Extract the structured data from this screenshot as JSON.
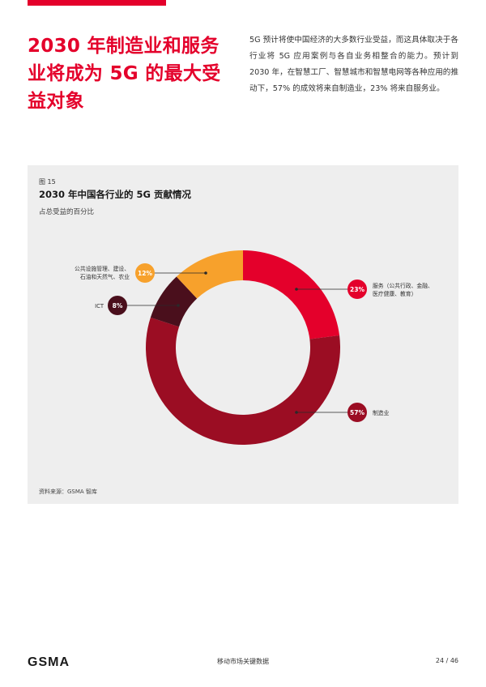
{
  "headline": "2030 年制造业和服务业将成为 5G 的最大受益对象",
  "intro": "5G 预计将使中国经济的大多数行业受益，而这具体取决于各行业将 5G 应用案例与各自业务相整合的能力。预计到 2030 年，在智慧工厂、智慧城市和智慧电网等各种应用的推动下，57% 的成效将来自制造业，23% 将来自服务业。",
  "figure": {
    "number": "图 15",
    "source": "资料来源：GSMA 智库"
  },
  "chart_data": {
    "type": "pie",
    "style": "donut",
    "title": "2030 年中国各行业的 5G 贡献情况",
    "subtitle": "占总受益的百分比",
    "slices": [
      {
        "label": "服务（公共行政、金融、医疗健康、教育）",
        "value": 23,
        "value_label": "23%",
        "color": "#e4002b",
        "label_lines": [
          "服务（公共行政、金融、",
          "医疗健康、教育）"
        ]
      },
      {
        "label": "制造业",
        "value": 57,
        "value_label": "57%",
        "color": "#9b0d23",
        "label_lines": [
          "制造业"
        ]
      },
      {
        "label": "ICT",
        "value": 8,
        "value_label": "8%",
        "color": "#4a0f1c",
        "label_lines": [
          "ICT"
        ]
      },
      {
        "label": "公共设施管理、建设、石油和天然气、农业",
        "value": 12,
        "value_label": "12%",
        "color": "#f7a12c",
        "label_lines": [
          "公共设施管理、建设、",
          "石油和天然气、农业"
        ]
      }
    ]
  },
  "footer": {
    "logo_text": "GSMA",
    "center": "移动市场关键数据",
    "page": "24 / 46"
  }
}
